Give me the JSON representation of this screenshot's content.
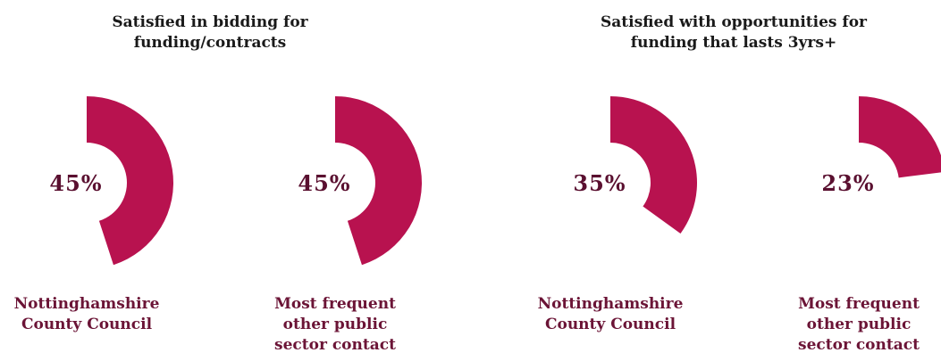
{
  "chart_data": [
    {
      "type": "donut",
      "title": "Satisfied in bidding for funding/contracts",
      "categories": [
        "Nottinghamshire County Council",
        "Most frequent other public sector contact"
      ],
      "values": [
        45,
        45
      ],
      "value_labels": [
        "45%",
        "45%"
      ],
      "color": "#b8124f"
    },
    {
      "type": "donut",
      "title": "Satisfied with opportunities for funding that lasts 3yrs+",
      "categories": [
        "Nottinghamshire County Council",
        "Most frequent other public sector contact"
      ],
      "values": [
        35,
        23
      ],
      "value_labels": [
        "35%",
        "23%"
      ],
      "color": "#b8124f"
    }
  ]
}
